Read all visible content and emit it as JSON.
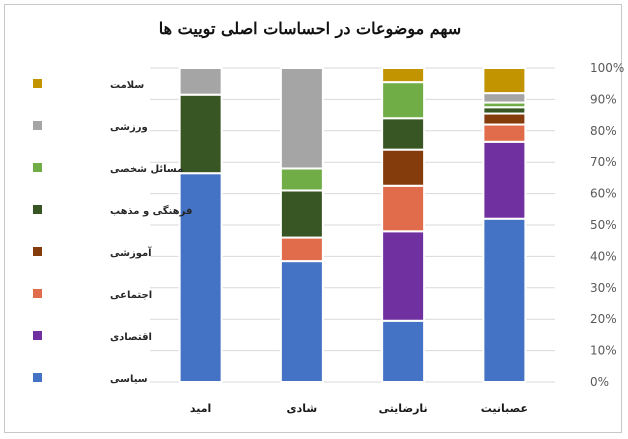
{
  "chart_data": {
    "type": "bar",
    "stacked": true,
    "percent": true,
    "title": "سهم موضوعات در احساسات اصلی توییت ها",
    "categories": [
      "امید",
      "شادی",
      "نارضایتی",
      "عصبانیت"
    ],
    "ylim": [
      0,
      100
    ],
    "yticks": [
      "0%",
      "10%",
      "20%",
      "30%",
      "40%",
      "50%",
      "60%",
      "70%",
      "80%",
      "90%",
      "100%"
    ],
    "grid": true,
    "legend_position": "left",
    "series": [
      {
        "name": "سیاسی",
        "color": "#4472C4",
        "values": [
          66.5,
          38.5,
          19.5,
          52
        ]
      },
      {
        "name": "اقتصادی",
        "color": "#7030A0",
        "values": [
          0,
          0,
          28.5,
          24.5
        ]
      },
      {
        "name": "اجتماعی",
        "color": "#E06C4B",
        "values": [
          0,
          7.5,
          14.5,
          5.5
        ]
      },
      {
        "name": "آموزشی",
        "color": "#843C0C",
        "values": [
          0,
          0,
          11.5,
          3.5
        ]
      },
      {
        "name": "فرهنگی و مذهب",
        "color": "#375623",
        "values": [
          25,
          15,
          10,
          2
        ]
      },
      {
        "name": "مسائل شخصی",
        "color": "#70AD47",
        "values": [
          0,
          7,
          11.5,
          1.5
        ]
      },
      {
        "name": "ورزشی",
        "color": "#A5A5A5",
        "values": [
          8.5,
          32,
          0,
          3
        ]
      },
      {
        "name": "سلامت",
        "color": "#C29500",
        "values": [
          0,
          0,
          4.5,
          8
        ]
      }
    ]
  }
}
